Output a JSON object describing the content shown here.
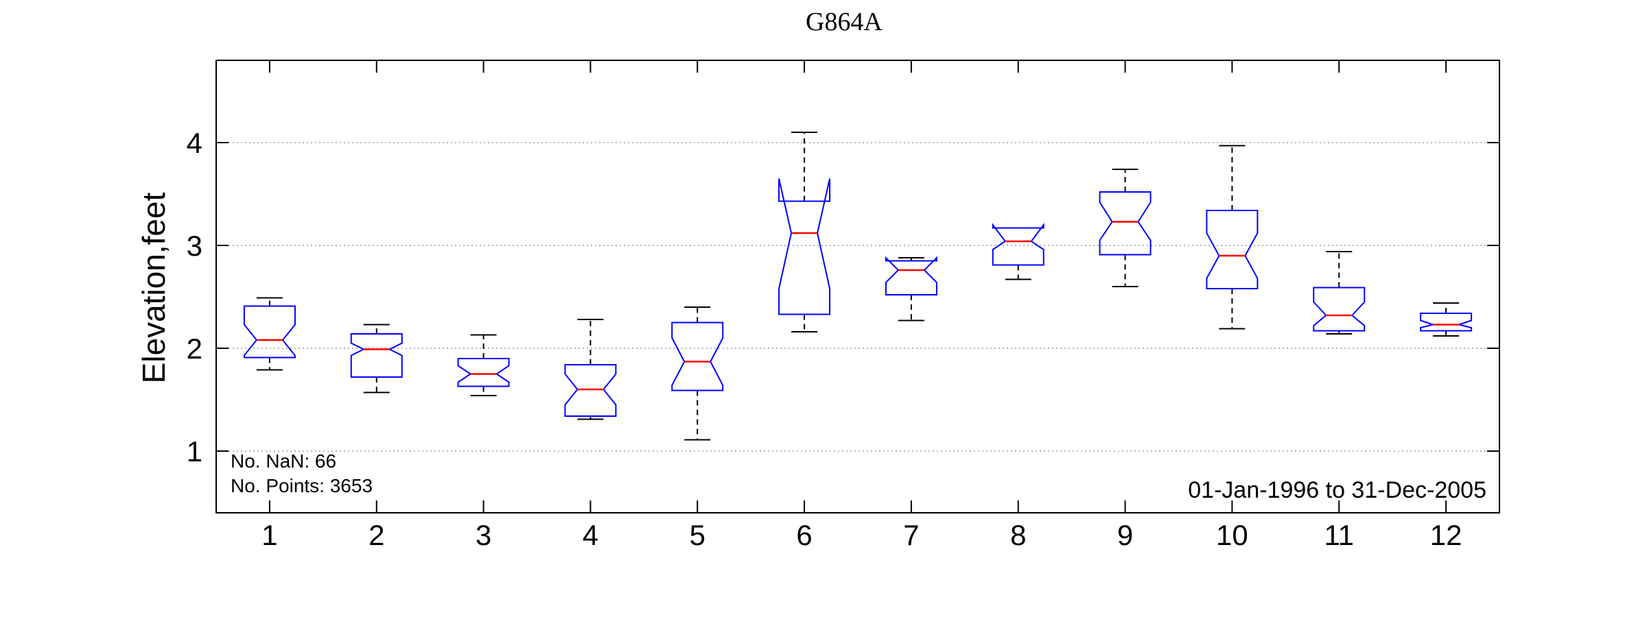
{
  "chart_data": {
    "type": "boxplot",
    "title": "G864A",
    "xlabel": "",
    "ylabel": "Elevation,feet",
    "categories": [
      "1",
      "2",
      "3",
      "4",
      "5",
      "6",
      "7",
      "8",
      "9",
      "10",
      "11",
      "12"
    ],
    "ylim": [
      0.4,
      4.8
    ],
    "yticks": [
      "1",
      "2",
      "3",
      "4"
    ],
    "grid": "horizontal dotted",
    "notched": true,
    "boxes": [
      {
        "whisker_low": 1.79,
        "q1": 1.91,
        "median": 2.08,
        "q3": 2.41,
        "whisker_high": 2.49,
        "notch_low": 1.93,
        "notch_high": 2.23
      },
      {
        "whisker_low": 1.57,
        "q1": 1.72,
        "median": 1.99,
        "q3": 2.14,
        "whisker_high": 2.23,
        "notch_low": 1.93,
        "notch_high": 2.05
      },
      {
        "whisker_low": 1.54,
        "q1": 1.63,
        "median": 1.75,
        "q3": 1.9,
        "whisker_high": 2.13,
        "notch_low": 1.67,
        "notch_high": 1.83
      },
      {
        "whisker_low": 1.31,
        "q1": 1.34,
        "median": 1.6,
        "q3": 1.84,
        "whisker_high": 2.28,
        "notch_low": 1.45,
        "notch_high": 1.75
      },
      {
        "whisker_low": 1.11,
        "q1": 1.59,
        "median": 1.87,
        "q3": 2.25,
        "whisker_high": 2.4,
        "notch_low": 1.64,
        "notch_high": 2.1
      },
      {
        "whisker_low": 2.16,
        "q1": 2.33,
        "median": 3.12,
        "q3": 3.43,
        "whisker_high": 4.1,
        "notch_low": 2.58,
        "notch_high": 3.65
      },
      {
        "whisker_low": 2.27,
        "q1": 2.52,
        "median": 2.76,
        "q3": 2.85,
        "whisker_high": 2.88,
        "notch_low": 2.64,
        "notch_high": 2.88
      },
      {
        "whisker_low": 2.67,
        "q1": 2.81,
        "median": 3.04,
        "q3": 3.17,
        "whisker_high": 3.17,
        "notch_low": 2.96,
        "notch_high": 3.2
      },
      {
        "whisker_low": 2.6,
        "q1": 2.91,
        "median": 3.23,
        "q3": 3.52,
        "whisker_high": 3.74,
        "notch_low": 3.05,
        "notch_high": 3.42
      },
      {
        "whisker_low": 2.19,
        "q1": 2.58,
        "median": 2.9,
        "q3": 3.34,
        "whisker_high": 3.97,
        "notch_low": 2.68,
        "notch_high": 3.12
      },
      {
        "whisker_low": 2.14,
        "q1": 2.17,
        "median": 2.32,
        "q3": 2.59,
        "whisker_high": 2.94,
        "notch_low": 2.22,
        "notch_high": 2.45
      },
      {
        "whisker_low": 2.12,
        "q1": 2.17,
        "median": 2.23,
        "q3": 2.34,
        "whisker_high": 2.44,
        "notch_low": 2.2,
        "notch_high": 2.27
      }
    ],
    "annotations": {
      "nan_count": "No. NaN: 66",
      "points_count": "No. Points: 3653",
      "date_range": "01-Jan-1996 to 31-Dec-2005"
    },
    "colors": {
      "box": "#0000ff",
      "median": "#ff0000",
      "whisker": "#000000",
      "grid": "#999999"
    }
  }
}
